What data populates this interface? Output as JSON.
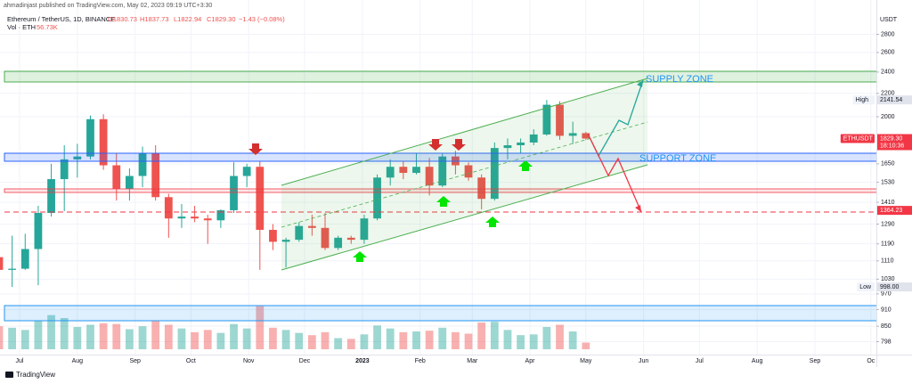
{
  "author_line": "ahmadinjast published on TradingView.com, May 02, 2023 09:19 UTC+3:30",
  "footer": "TradingView",
  "chart_data": {
    "type": "candlestick",
    "title": "Ethereum / TetherUS, 1D, BINANCE",
    "ohlc_labels": [
      "O1830.73",
      "H1837.73",
      "L1822.94",
      "C1829.30",
      "−1.43 (−0.08%)"
    ],
    "volume_label": "Vol · ETH",
    "volume_value": "56.73K",
    "y_axis_unit": "USDT",
    "annotations": [
      "SUPPLY ZONE",
      "SUPPORT ZONE"
    ],
    "log_scale": true,
    "up_color": "#26a69a",
    "down_color": "#ef5350",
    "categories": [
      null,
      null,
      null,
      null,
      null,
      null,
      null,
      null,
      null,
      null,
      null,
      null,
      null,
      null,
      null,
      null,
      null,
      null,
      null,
      null,
      null,
      null,
      null,
      null,
      null,
      null,
      null,
      null,
      null,
      null,
      null,
      null,
      null,
      null,
      null,
      null,
      null,
      null,
      null,
      null,
      null,
      null,
      null,
      null,
      null,
      null
    ],
    "open": [
      1127,
      1070,
      1075,
      1165,
      1350,
      1550,
      1680,
      1700,
      1980,
      1640,
      1490,
      1570,
      1720,
      1440,
      1320,
      1330,
      1320,
      1310,
      1365,
      1570,
      1630,
      1260,
      1200,
      1210,
      1280,
      1270,
      1170,
      1220,
      1210,
      1320,
      1560,
      1630,
      1590,
      1630,
      1510,
      1700,
      1640,
      1560,
      1430,
      1760,
      1780,
      1800,
      1860,
      2100,
      1850,
      1870
    ],
    "high": [
      1280,
      1230,
      1240,
      1390,
      1650,
      1780,
      1790,
      2010,
      2020,
      1720,
      1620,
      1770,
      1780,
      1460,
      1400,
      1390,
      1340,
      1370,
      1660,
      1650,
      1670,
      1290,
      1220,
      1300,
      1340,
      1350,
      1230,
      1230,
      1340,
      1580,
      1680,
      1670,
      1720,
      1690,
      1720,
      1740,
      1660,
      1580,
      1800,
      1830,
      1830,
      1900,
      2141.54,
      2130,
      1960,
      1880
    ],
    "low": [
      1040,
      998,
      1070,
      1005,
      1330,
      1360,
      1560,
      1680,
      1610,
      1420,
      1420,
      1500,
      1420,
      1220,
      1270,
      1300,
      1190,
      1270,
      1350,
      1500,
      1070,
      1160,
      1080,
      1200,
      1230,
      1160,
      1160,
      1190,
      1190,
      1310,
      1510,
      1550,
      1580,
      1450,
      1500,
      1580,
      1540,
      1370,
      1420,
      1680,
      1720,
      1780,
      1850,
      1820,
      1790,
      1820
    ],
    "close": [
      1070,
      1075,
      1165,
      1350,
      1550,
      1680,
      1700,
      1980,
      1640,
      1490,
      1570,
      1720,
      1440,
      1320,
      1330,
      1320,
      1310,
      1365,
      1570,
      1630,
      1260,
      1200,
      1210,
      1280,
      1270,
      1170,
      1220,
      1210,
      1320,
      1560,
      1630,
      1590,
      1630,
      1510,
      1700,
      1640,
      1560,
      1430,
      1760,
      1780,
      1800,
      1860,
      2100,
      1850,
      1870,
      1829.3
    ],
    "volume": [
      3100,
      2900,
      2600,
      3800,
      4600,
      4200,
      3000,
      3300,
      3500,
      3400,
      2700,
      3100,
      3900,
      3300,
      2800,
      2300,
      2600,
      2200,
      3400,
      2800,
      5800,
      2900,
      2600,
      2200,
      1900,
      2300,
      1500,
      1400,
      2000,
      3200,
      2800,
      2300,
      2400,
      2500,
      2900,
      2300,
      2100,
      3600,
      3700,
      2600,
      1900,
      2000,
      3000,
      3300,
      2400,
      900
    ],
    "volume_lim": [
      0,
      6000
    ],
    "ylim": [
      757,
      3017
    ],
    "yticks": [
      2800,
      2600,
      2400,
      2200,
      2000,
      1650,
      1530,
      1410,
      1290,
      1190,
      1110,
      1030,
      970,
      910,
      850,
      798
    ],
    "xticks": [
      {
        "value": 1.57,
        "label": "Jul"
      },
      {
        "value": 6.0,
        "label": "Aug"
      },
      {
        "value": 10.43,
        "label": "Sep"
      },
      {
        "value": 14.71,
        "label": "Oct"
      },
      {
        "value": 19.14,
        "label": "Nov"
      },
      {
        "value": 23.43,
        "label": "Dec"
      },
      {
        "value": 27.86,
        "label": "2023"
      },
      {
        "value": 32.29,
        "label": "Feb"
      },
      {
        "value": 36.29,
        "label": "Mar"
      },
      {
        "value": 40.71,
        "label": "Apr"
      },
      {
        "value": 45.0,
        "label": "May"
      },
      {
        "value": 49.43,
        "label": "Jun"
      },
      {
        "value": 53.71,
        "label": "Jul"
      },
      {
        "value": 58.14,
        "label": "Aug"
      },
      {
        "value": 62.57,
        "label": "Sep"
      },
      {
        "value": 66.86,
        "label": "Oc"
      }
    ],
    "price_labels": [
      {
        "name": "High",
        "value": 2141.54
      },
      {
        "name": "ETHUSDT",
        "value": 1829.3,
        "label": "1829.30",
        "timer": "18:10:36"
      },
      {
        "value": 1364.23
      },
      {
        "name": "Low",
        "value": 998,
        "label": "998.00"
      }
    ]
  }
}
